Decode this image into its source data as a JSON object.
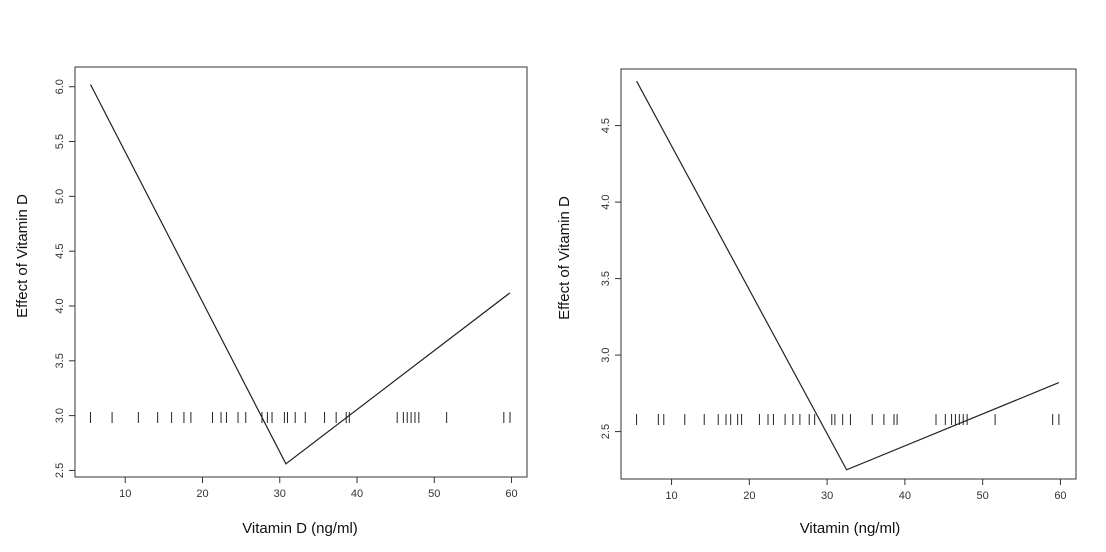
{
  "chart_data": [
    {
      "type": "line",
      "xlabel": "Vitamin D (ng/ml)",
      "ylabel": "Effect of Vitamin D",
      "xlim": [
        3.5,
        62
      ],
      "ylim": [
        2.44,
        6.18
      ],
      "xticks": [
        10,
        20,
        30,
        40,
        50,
        60
      ],
      "yticks": [
        2.5,
        3.0,
        3.5,
        4.0,
        4.5,
        5.0,
        5.5,
        6.0
      ],
      "ytick_labels": [
        "2.5",
        "3.0",
        "3.5",
        "4.0",
        "4.5",
        "5.0",
        "5.5",
        "6.0"
      ],
      "series": [
        {
          "x": [
            5.5,
            30.8,
            59.8
          ],
          "y": [
            6.02,
            2.56,
            4.12
          ]
        }
      ],
      "rug": [
        5.5,
        8.3,
        11.7,
        14.2,
        16.0,
        17.6,
        18.5,
        21.3,
        22.4,
        23.1,
        24.6,
        25.6,
        27.7,
        28.4,
        29.0,
        30.6,
        31.0,
        32.0,
        33.3,
        35.8,
        37.3,
        38.6,
        39.0,
        45.2,
        46.0,
        46.5,
        47.0,
        47.5,
        48.0,
        51.6,
        59.0,
        59.8
      ],
      "color": "#222222"
    },
    {
      "type": "line",
      "xlabel": "Vitamin (ng/ml)",
      "ylabel": "Effect of Vitamin D",
      "xlim": [
        3.5,
        62
      ],
      "ylim": [
        2.19,
        4.87
      ],
      "xticks": [
        10,
        20,
        30,
        40,
        50,
        60
      ],
      "yticks": [
        2.5,
        3.0,
        3.5,
        4.0,
        4.5
      ],
      "ytick_labels": [
        "2.5",
        "3.0",
        "3.5",
        "4.0",
        "4.5"
      ],
      "series": [
        {
          "x": [
            5.5,
            32.5,
            59.8
          ],
          "y": [
            4.79,
            2.25,
            2.82
          ]
        }
      ],
      "rug": [
        5.5,
        8.3,
        9.0,
        11.7,
        14.2,
        16.0,
        17.0,
        17.6,
        18.5,
        19.0,
        21.3,
        22.4,
        23.1,
        24.6,
        25.6,
        26.5,
        27.7,
        28.4,
        30.6,
        31.0,
        32.0,
        33.0,
        35.8,
        37.3,
        38.6,
        39.0,
        44.0,
        45.2,
        46.0,
        46.5,
        47.0,
        47.5,
        48.0,
        51.6,
        59.0,
        59.8
      ],
      "color": "#222222"
    }
  ]
}
